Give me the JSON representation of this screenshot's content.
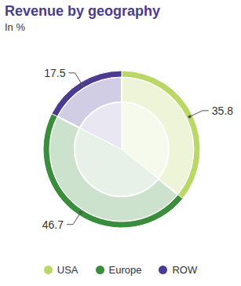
{
  "chart_data": {
    "type": "pie",
    "title": "Revenue by geography",
    "subtitle": "In %",
    "categories": [
      "USA",
      "Europe",
      "ROW"
    ],
    "values": [
      35.8,
      46.7,
      17.5
    ],
    "colors": [
      "#b9d866",
      "#3a8d3c",
      "#4b3c92"
    ],
    "data_labels": true,
    "legend": "bottom"
  }
}
